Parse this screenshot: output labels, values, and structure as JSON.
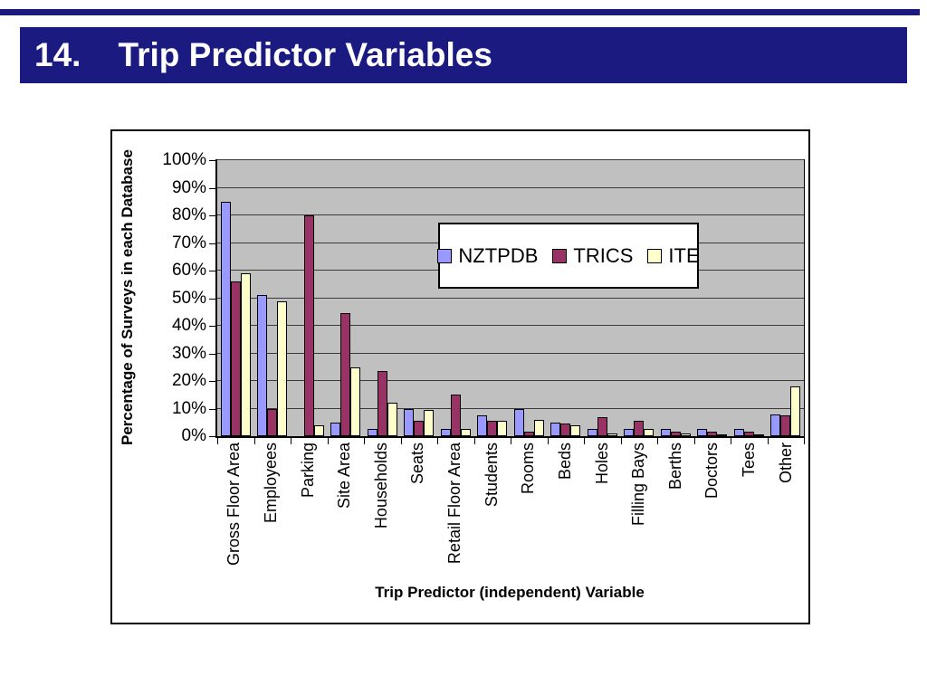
{
  "slide": {
    "title": "14.    Trip Predictor Variables"
  },
  "colors": {
    "header_navy": "#1a1a80",
    "chart_frame_border": "#000000",
    "gridline": "#3a3a3a"
  },
  "chart_data": {
    "type": "bar",
    "title": "",
    "xlabel": "Trip Predictor (independent) Variable",
    "ylabel": "Percentage of Surveys in each Database",
    "ylim": [
      0,
      100
    ],
    "ytick_step": 10,
    "ytick_labels": [
      "100%",
      "90%",
      "80%",
      "70%",
      "60%",
      "50%",
      "40%",
      "30%",
      "20%",
      "10%",
      "0%"
    ],
    "grid": true,
    "plot_bg": "#c0c0c0",
    "legend_position": "inside-top-center",
    "categories": [
      "Gross Floor Area",
      "Employees",
      "Parking",
      "Site Area",
      "Households",
      "Seats",
      "Retail Floor Area",
      "Students",
      "Rooms",
      "Beds",
      "Holes",
      "Filling Bays",
      "Berths",
      "Doctors",
      "Tees",
      "Other"
    ],
    "series": [
      {
        "name": "NZTPDB",
        "color": "#9999ff",
        "values": [
          85,
          51,
          0,
          5,
          2.5,
          10,
          2.5,
          7.5,
          10,
          5,
          2.5,
          2.5,
          2.5,
          2.5,
          2.5,
          8
        ]
      },
      {
        "name": "TRICS",
        "color": "#993366",
        "values": [
          56,
          10,
          80,
          44.5,
          23.5,
          5.5,
          15,
          5.5,
          1.5,
          4.5,
          7,
          5.5,
          1.5,
          1.5,
          1.5,
          7.5
        ]
      },
      {
        "name": "ITE",
        "color": "#ffffcc",
        "values": [
          59,
          49,
          4,
          25,
          12,
          9.5,
          2.5,
          5.5,
          6,
          4,
          1,
          2.5,
          1,
          0.5,
          0.5,
          18
        ]
      }
    ]
  }
}
